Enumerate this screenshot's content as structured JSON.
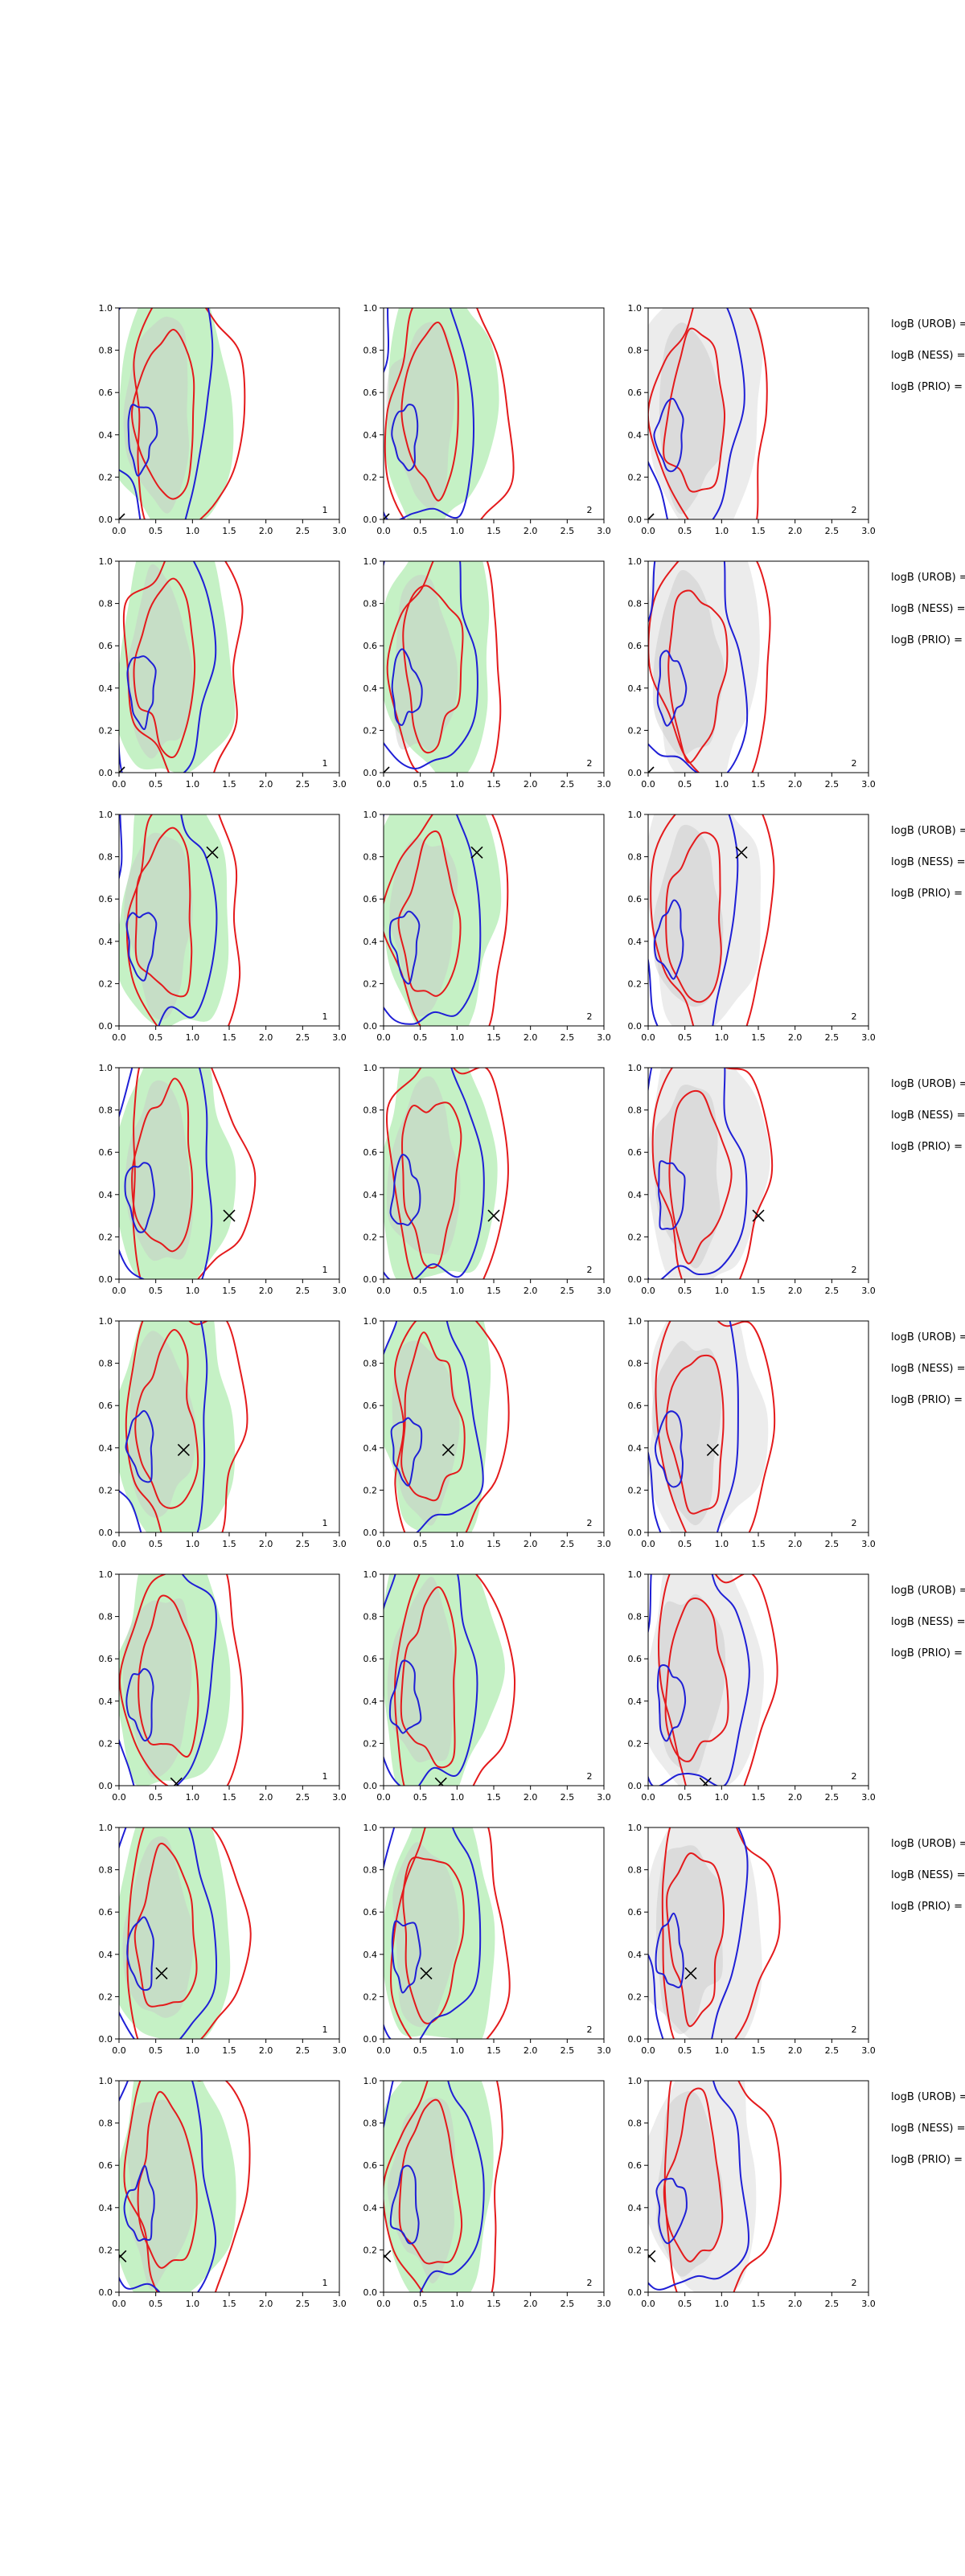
{
  "colors": {
    "red": "#e41a1c",
    "blue": "#1f1fd6",
    "green_fill": "#7fe07f",
    "gray_fill": "#c8c8c8"
  },
  "axes": {
    "xlim": [
      0,
      3.0
    ],
    "ylim": [
      0,
      1.0
    ],
    "xticks": [
      "0.0",
      "0.5",
      "1.0",
      "1.5",
      "2.0",
      "2.5",
      "3.0"
    ],
    "yticks": [
      "0.0",
      "0.2",
      "0.4",
      "0.6",
      "0.8",
      "1.0"
    ],
    "grid": false
  },
  "text_labels": {
    "urob": "logB (UROB) =",
    "ness": "logB (NESS) =",
    "prio": "logB (PRIO) ="
  },
  "chart_data": [
    {
      "type": "contour",
      "row": 1,
      "panels": [
        {
          "corner_label": "1"
        },
        {
          "corner_label": "2"
        },
        {
          "corner_label": "2"
        }
      ],
      "marker": {
        "x": 0.0,
        "y": 0.0
      },
      "contour_levels": 2
    },
    {
      "type": "contour",
      "row": 2,
      "panels": [
        {
          "corner_label": "1"
        },
        {
          "corner_label": "2"
        },
        {
          "corner_label": "2"
        }
      ],
      "marker": {
        "x": 0.0,
        "y": 0.0
      },
      "contour_levels": 2
    },
    {
      "type": "contour",
      "row": 3,
      "panels": [
        {
          "corner_label": "1"
        },
        {
          "corner_label": "2"
        },
        {
          "corner_label": "2"
        }
      ],
      "marker": {
        "x": 1.27,
        "y": 0.82
      },
      "contour_levels": 2
    },
    {
      "type": "contour",
      "row": 4,
      "panels": [
        {
          "corner_label": "1"
        },
        {
          "corner_label": "2"
        },
        {
          "corner_label": "2"
        }
      ],
      "marker": {
        "x": 1.5,
        "y": 0.3
      },
      "contour_levels": 2
    },
    {
      "type": "contour",
      "row": 5,
      "panels": [
        {
          "corner_label": "1"
        },
        {
          "corner_label": "2"
        },
        {
          "corner_label": "2"
        }
      ],
      "marker": {
        "x": 0.88,
        "y": 0.39
      },
      "contour_levels": 2
    },
    {
      "type": "contour",
      "row": 6,
      "panels": [
        {
          "corner_label": "1"
        },
        {
          "corner_label": "2"
        },
        {
          "corner_label": "2"
        }
      ],
      "marker": {
        "x": 0.78,
        "y": 0.01
      },
      "contour_levels": 2
    },
    {
      "type": "contour",
      "row": 7,
      "panels": [
        {
          "corner_label": "1"
        },
        {
          "corner_label": "2"
        },
        {
          "corner_label": "2"
        }
      ],
      "marker": {
        "x": 0.58,
        "y": 0.31
      },
      "contour_levels": 2
    },
    {
      "type": "contour",
      "row": 8,
      "panels": [
        {
          "corner_label": "1"
        },
        {
          "corner_label": "2"
        },
        {
          "corner_label": "2"
        }
      ],
      "marker": {
        "x": 0.02,
        "y": 0.17
      },
      "contour_levels": 2
    }
  ]
}
